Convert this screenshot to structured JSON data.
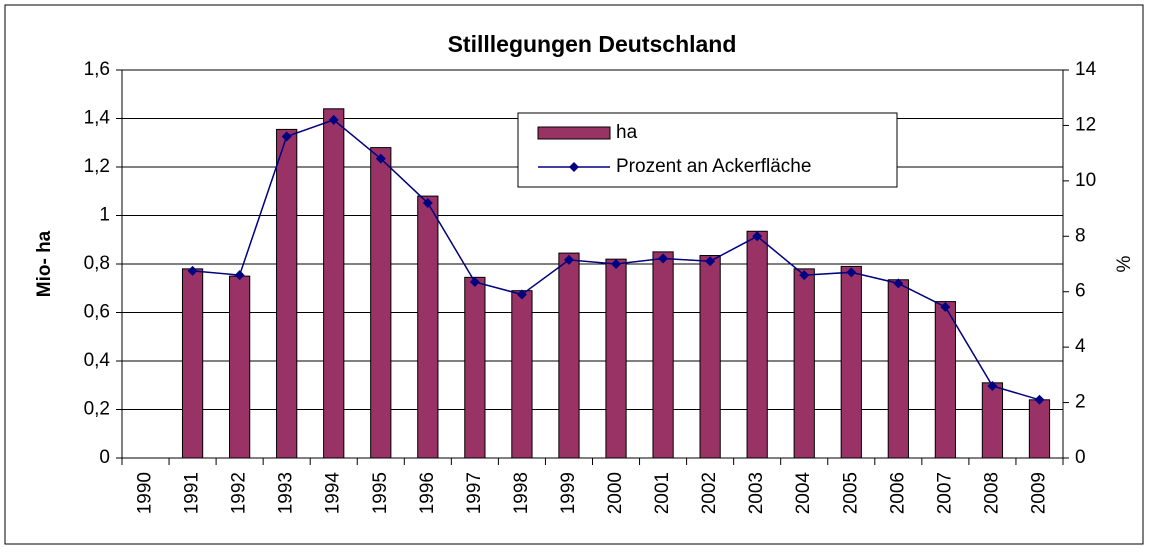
{
  "chart_data": {
    "type": "bar-line",
    "title": "Stilllegungen Deutschland",
    "y_label": "Mio- ha",
    "y2_label": "%",
    "categories": [
      "1990",
      "1991",
      "1992",
      "1993",
      "1994",
      "1995",
      "1996",
      "1997",
      "1998",
      "1999",
      "2000",
      "2001",
      "2002",
      "2003",
      "2004",
      "2005",
      "2006",
      "2007",
      "2008",
      "2009"
    ],
    "series": [
      {
        "name": "ha",
        "type": "bar",
        "color": "#993366",
        "values": [
          null,
          0.78,
          0.75,
          1.355,
          1.44,
          1.28,
          1.08,
          0.745,
          0.69,
          0.845,
          0.82,
          0.85,
          0.835,
          0.935,
          0.78,
          0.79,
          0.735,
          0.645,
          0.31,
          0.24
        ]
      },
      {
        "name": "Prozent an Ackerfläche",
        "type": "line",
        "axis": "y2",
        "color": "#000080",
        "values": [
          null,
          6.75,
          6.6,
          11.6,
          12.2,
          10.8,
          9.2,
          6.35,
          5.9,
          7.15,
          7.0,
          7.2,
          7.1,
          8.0,
          6.6,
          6.7,
          6.3,
          5.45,
          2.6,
          2.1
        ]
      }
    ],
    "ylim": [
      0,
      1.6
    ],
    "yticks": [
      0,
      {
        "value": 0.2,
        "label": "0,2"
      },
      {
        "value": 0.4,
        "label": "0,4"
      },
      {
        "value": 0.6,
        "label": "0,6"
      },
      {
        "value": 0.8,
        "label": "0,8"
      },
      1,
      {
        "value": 1.2,
        "label": "1,2"
      },
      {
        "value": 1.4,
        "label": "1,4"
      },
      {
        "value": 1.6,
        "label": "1,6"
      }
    ],
    "y2lim": [
      0,
      14
    ],
    "y2ticks": [
      0,
      2,
      4,
      6,
      8,
      10,
      12,
      14
    ],
    "grid": true,
    "legend": "top-right"
  }
}
